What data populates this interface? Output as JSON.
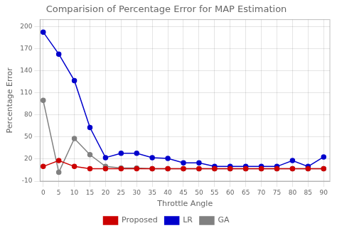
{
  "chart_data": {
    "type": "line",
    "title": "Comparision of Percentage Error for MAP Estimation",
    "xlabel": "Throttle Angle",
    "ylabel": "Percentage Error",
    "x": [
      0,
      5,
      10,
      15,
      20,
      25,
      30,
      35,
      40,
      45,
      50,
      55,
      60,
      65,
      70,
      75,
      80,
      85,
      90
    ],
    "series": [
      {
        "name": "Proposed",
        "color": "#cc0000",
        "values": [
          10,
          18,
          10,
          7,
          7,
          7,
          7,
          7,
          7,
          7,
          7,
          7,
          7,
          7,
          7,
          7,
          7,
          7,
          7
        ]
      },
      {
        "name": "LR",
        "color": "#0000cc",
        "values": [
          193,
          163,
          127,
          63,
          22,
          28,
          28,
          22,
          21,
          15,
          15,
          10,
          10,
          10,
          10,
          10,
          18,
          10,
          23
        ]
      },
      {
        "name": "GA",
        "color": "#808080",
        "values": [
          100,
          2,
          48,
          26,
          10,
          8,
          8,
          7,
          7,
          7,
          7,
          7,
          7,
          7,
          7,
          7,
          7,
          7,
          7
        ]
      }
    ],
    "xlim": [
      -1,
      92
    ],
    "ylim": [
      -10,
      210
    ],
    "xticks": [
      0,
      5,
      10,
      15,
      20,
      25,
      30,
      35,
      40,
      45,
      50,
      55,
      60,
      65,
      70,
      75,
      80,
      85,
      90
    ],
    "yticks": [
      -10,
      20,
      50,
      80,
      110,
      140,
      170,
      200
    ],
    "grid": true,
    "legend": "bottom",
    "marker": "circle"
  }
}
